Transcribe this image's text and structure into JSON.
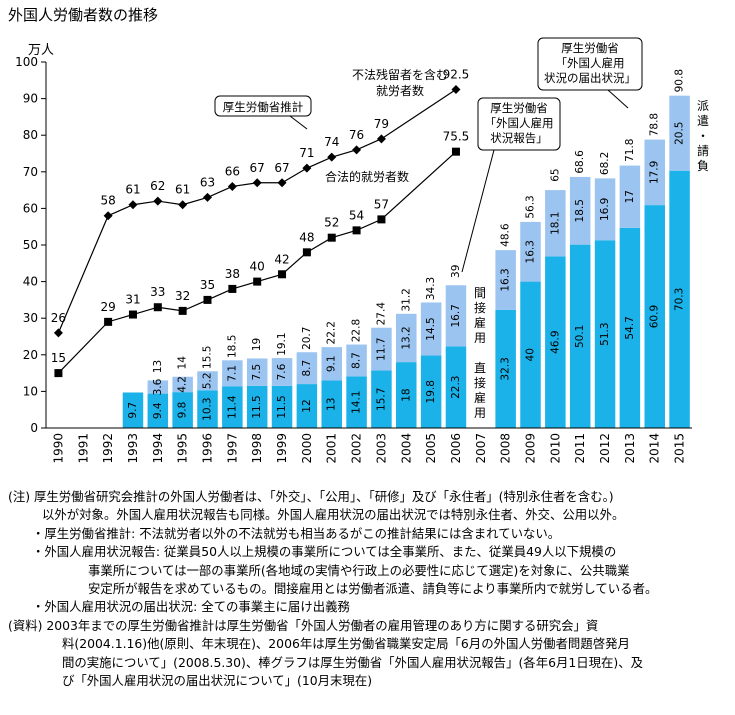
{
  "chart_data": {
    "type": "bar",
    "title": "外国人労働者数の推移",
    "ylabel": "万人",
    "ylim": [
      0,
      100
    ],
    "yticks": [
      0,
      10,
      20,
      30,
      40,
      50,
      60,
      70,
      80,
      90,
      100
    ],
    "grid": false,
    "categories": [
      "1990",
      "1991",
      "1992",
      "1993",
      "1994",
      "1995",
      "1996",
      "1997",
      "1998",
      "1999",
      "2000",
      "2001",
      "2002",
      "2003",
      "2004",
      "2005",
      "2006",
      "2007",
      "2008",
      "2009",
      "2010",
      "2011",
      "2012",
      "2013",
      "2014",
      "2015"
    ],
    "bars_survey_2006_direct": [
      null,
      null,
      null,
      9.7,
      9.4,
      9.8,
      10.3,
      11.4,
      11.5,
      11.5,
      12.0,
      13.0,
      14.1,
      15.7,
      18.0,
      19.8,
      22.3,
      null,
      null,
      null,
      null,
      null,
      null,
      null,
      null,
      null
    ],
    "bars_survey_2006_indirect": [
      null,
      null,
      null,
      null,
      3.6,
      4.2,
      5.2,
      7.1,
      7.5,
      7.6,
      8.7,
      9.1,
      8.7,
      11.7,
      13.2,
      14.5,
      16.7,
      null,
      null,
      null,
      null,
      null,
      null,
      null,
      null,
      null
    ],
    "bars_survey_2006_total": [
      null,
      null,
      null,
      null,
      13.0,
      14.0,
      15.5,
      18.5,
      19.0,
      19.1,
      20.7,
      22.2,
      22.8,
      27.4,
      31.2,
      34.3,
      39.0,
      null,
      null,
      null,
      null,
      null,
      null,
      null,
      null,
      null
    ],
    "bars_notification_direct": [
      null,
      null,
      null,
      null,
      null,
      null,
      null,
      null,
      null,
      null,
      null,
      null,
      null,
      null,
      null,
      null,
      null,
      null,
      32.3,
      40.0,
      46.9,
      50.1,
      51.3,
      54.7,
      60.9,
      70.3
    ],
    "bars_notification_dispatch": [
      null,
      null,
      null,
      null,
      null,
      null,
      null,
      null,
      null,
      null,
      null,
      null,
      null,
      null,
      null,
      null,
      null,
      null,
      16.3,
      16.3,
      18.1,
      18.5,
      16.9,
      17.0,
      17.9,
      20.5
    ],
    "bars_notification_total": [
      null,
      null,
      null,
      null,
      null,
      null,
      null,
      null,
      null,
      null,
      null,
      null,
      null,
      null,
      null,
      null,
      null,
      null,
      48.6,
      56.3,
      65.0,
      68.6,
      68.2,
      71.8,
      78.8,
      90.8
    ],
    "line_mhlw_estimate": [
      26,
      null,
      58,
      61,
      62,
      61,
      63,
      66,
      67,
      67,
      71,
      74,
      76,
      79,
      92.5,
      null,
      null,
      null,
      null,
      null,
      null,
      null,
      null,
      null,
      null,
      null
    ],
    "line_legal_workers": [
      15,
      null,
      29,
      31,
      33,
      32,
      35,
      38,
      40,
      42,
      48,
      52,
      54,
      57,
      75.5,
      null,
      null,
      null,
      null,
      null,
      null,
      null,
      null,
      null,
      null,
      null
    ],
    "labels": {
      "illegal_overstay": [
        "不法残留者を含む",
        "就労者数"
      ],
      "legal_workers": "合法的就労者数",
      "mhlw_estimate": "厚生労働省推計",
      "survey_callout": [
        "厚生労働省",
        "「外国人雇用",
        "状況報告」"
      ],
      "notification_callout": [
        "厚生労働省",
        "「外国人雇用",
        "状況の届出状況」"
      ],
      "indirect": "間接雇用",
      "direct": "直接雇用",
      "dispatch": "派遣・請負"
    }
  },
  "colors": {
    "bar_dark": "#1ab2e8",
    "bar_light": "#9bc4f0",
    "line": "#000000"
  },
  "notes": [
    "(注) 厚生労働省研究会推計の外国人労働者は、「外交」、「公用」、「研修」及び「永住者」(特別永住者を含む。)",
    "以外が対象。外国人雇用状況報告も同様。外国人雇用状況の届出状況では特別永住者、外交、公用以外。",
    "・厚生労働省推計: 不法就労者以外の不法就労も相当あるがこの推計結果には含まれていない。",
    "・外国人雇用状況報告: 従業員50人以上規模の事業所については全事業所、また、従業員49人以下規模の",
    "事業所については一部の事業所(各地域の実情や行政上の必要性に応じて選定)を対象に、公共職業",
    "安定所が報告を求めているもの。間接雇用とは労働者派遣、請負等により事業所内で就労している者。",
    "・外国人雇用状況の届出状況: 全ての事業主に届け出義務",
    "(資料) 2003年までの厚生労働省推計は厚生労働省「外国人労働者の雇用管理のあり方に関する研究会」資",
    "料(2004.1.16)他(原則、年末現在)、2006年は厚生労働省職業安定局「6月の外国人労働者問題啓発月",
    "間の実施について」(2008.5.30)、棒グラフは厚生労働省「外国人雇用状況報告」(各年6月1日現在)、及",
    "び「外国人雇用状況の届出状況について」(10月末現在)"
  ]
}
